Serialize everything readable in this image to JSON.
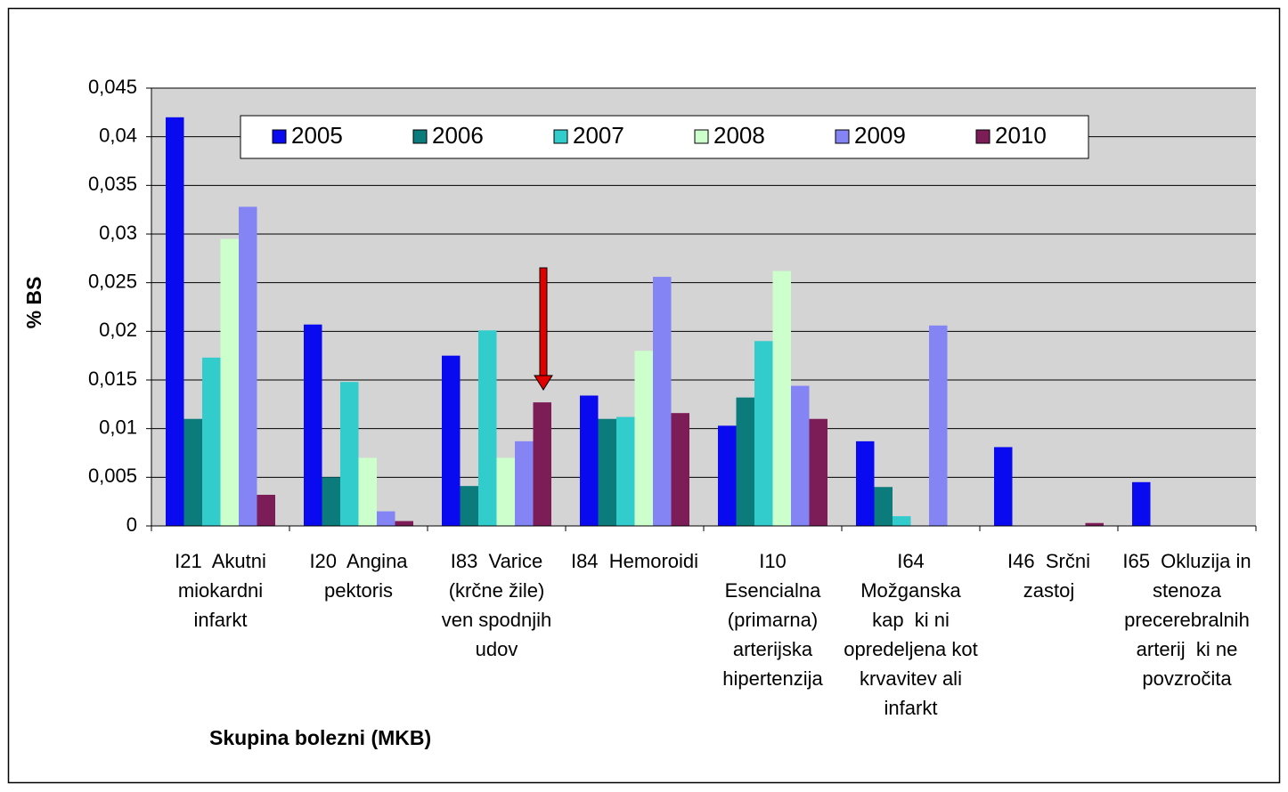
{
  "chart_data": {
    "type": "bar",
    "x_label": "Skupina bolezni (MKB)",
    "y_label": "% BS",
    "categories": [
      "I21  Akutni\nmiokardni\ninfarkt",
      "I20  Angina\npektoris",
      "I83  Varice\n(krčne žile)\nven spodnjih\nudov",
      "I84  Hemoroidi",
      "I10\nEsencialna\n(primarna)\narterijska\nhipertenzija",
      "I64\nMožganska\nkap  ki ni\nopredeljena kot\nkrvavitev ali\ninfarkt",
      "I46  Srčni\nzastoj",
      "I65  Okluzija in\nstenoza\nprecerebralnih\narterij  ki ne\npovzročita"
    ],
    "series": [
      {
        "name": "2005",
        "color": "#0a0af0",
        "values": [
          0.042,
          0.0207,
          0.0175,
          0.0134,
          0.0103,
          0.0087,
          0.0081,
          0.0045
        ]
      },
      {
        "name": "2006",
        "color": "#0b7b7b",
        "values": [
          0.011,
          0.005,
          0.0041,
          0.011,
          0.0132,
          0.004,
          0,
          0
        ]
      },
      {
        "name": "2007",
        "color": "#33cccc",
        "values": [
          0.0173,
          0.0148,
          0.0201,
          0.0112,
          0.019,
          0.001,
          0,
          0
        ]
      },
      {
        "name": "2008",
        "color": "#ccffcc",
        "values": [
          0.0295,
          0.007,
          0.007,
          0.018,
          0.0262,
          0,
          0,
          0
        ]
      },
      {
        "name": "2009",
        "color": "#8484f4",
        "values": [
          0.0328,
          0.0015,
          0.0087,
          0.0256,
          0.0144,
          0.0206,
          0,
          0
        ]
      },
      {
        "name": "2010",
        "color": "#7d1d58",
        "values": [
          0.0032,
          0.0005,
          0.0127,
          0.0116,
          0.011,
          0,
          0.0003,
          0
        ]
      }
    ],
    "ylim": [
      0,
      0.045
    ],
    "yticks": [
      0,
      {
        "value": 0.005,
        "label": "0,005"
      },
      {
        "value": 0.01,
        "label": "0,01"
      },
      {
        "value": 0.015,
        "label": "0,015"
      },
      {
        "value": 0.02,
        "label": "0,02"
      },
      {
        "value": 0.025,
        "label": "0,025"
      },
      {
        "value": 0.03,
        "label": "0,03"
      },
      {
        "value": 0.035,
        "label": "0,035"
      },
      {
        "value": 0.04,
        "label": "0,04"
      },
      {
        "value": 0.045,
        "label": "0,045"
      }
    ],
    "grid": true,
    "legend": "top"
  }
}
